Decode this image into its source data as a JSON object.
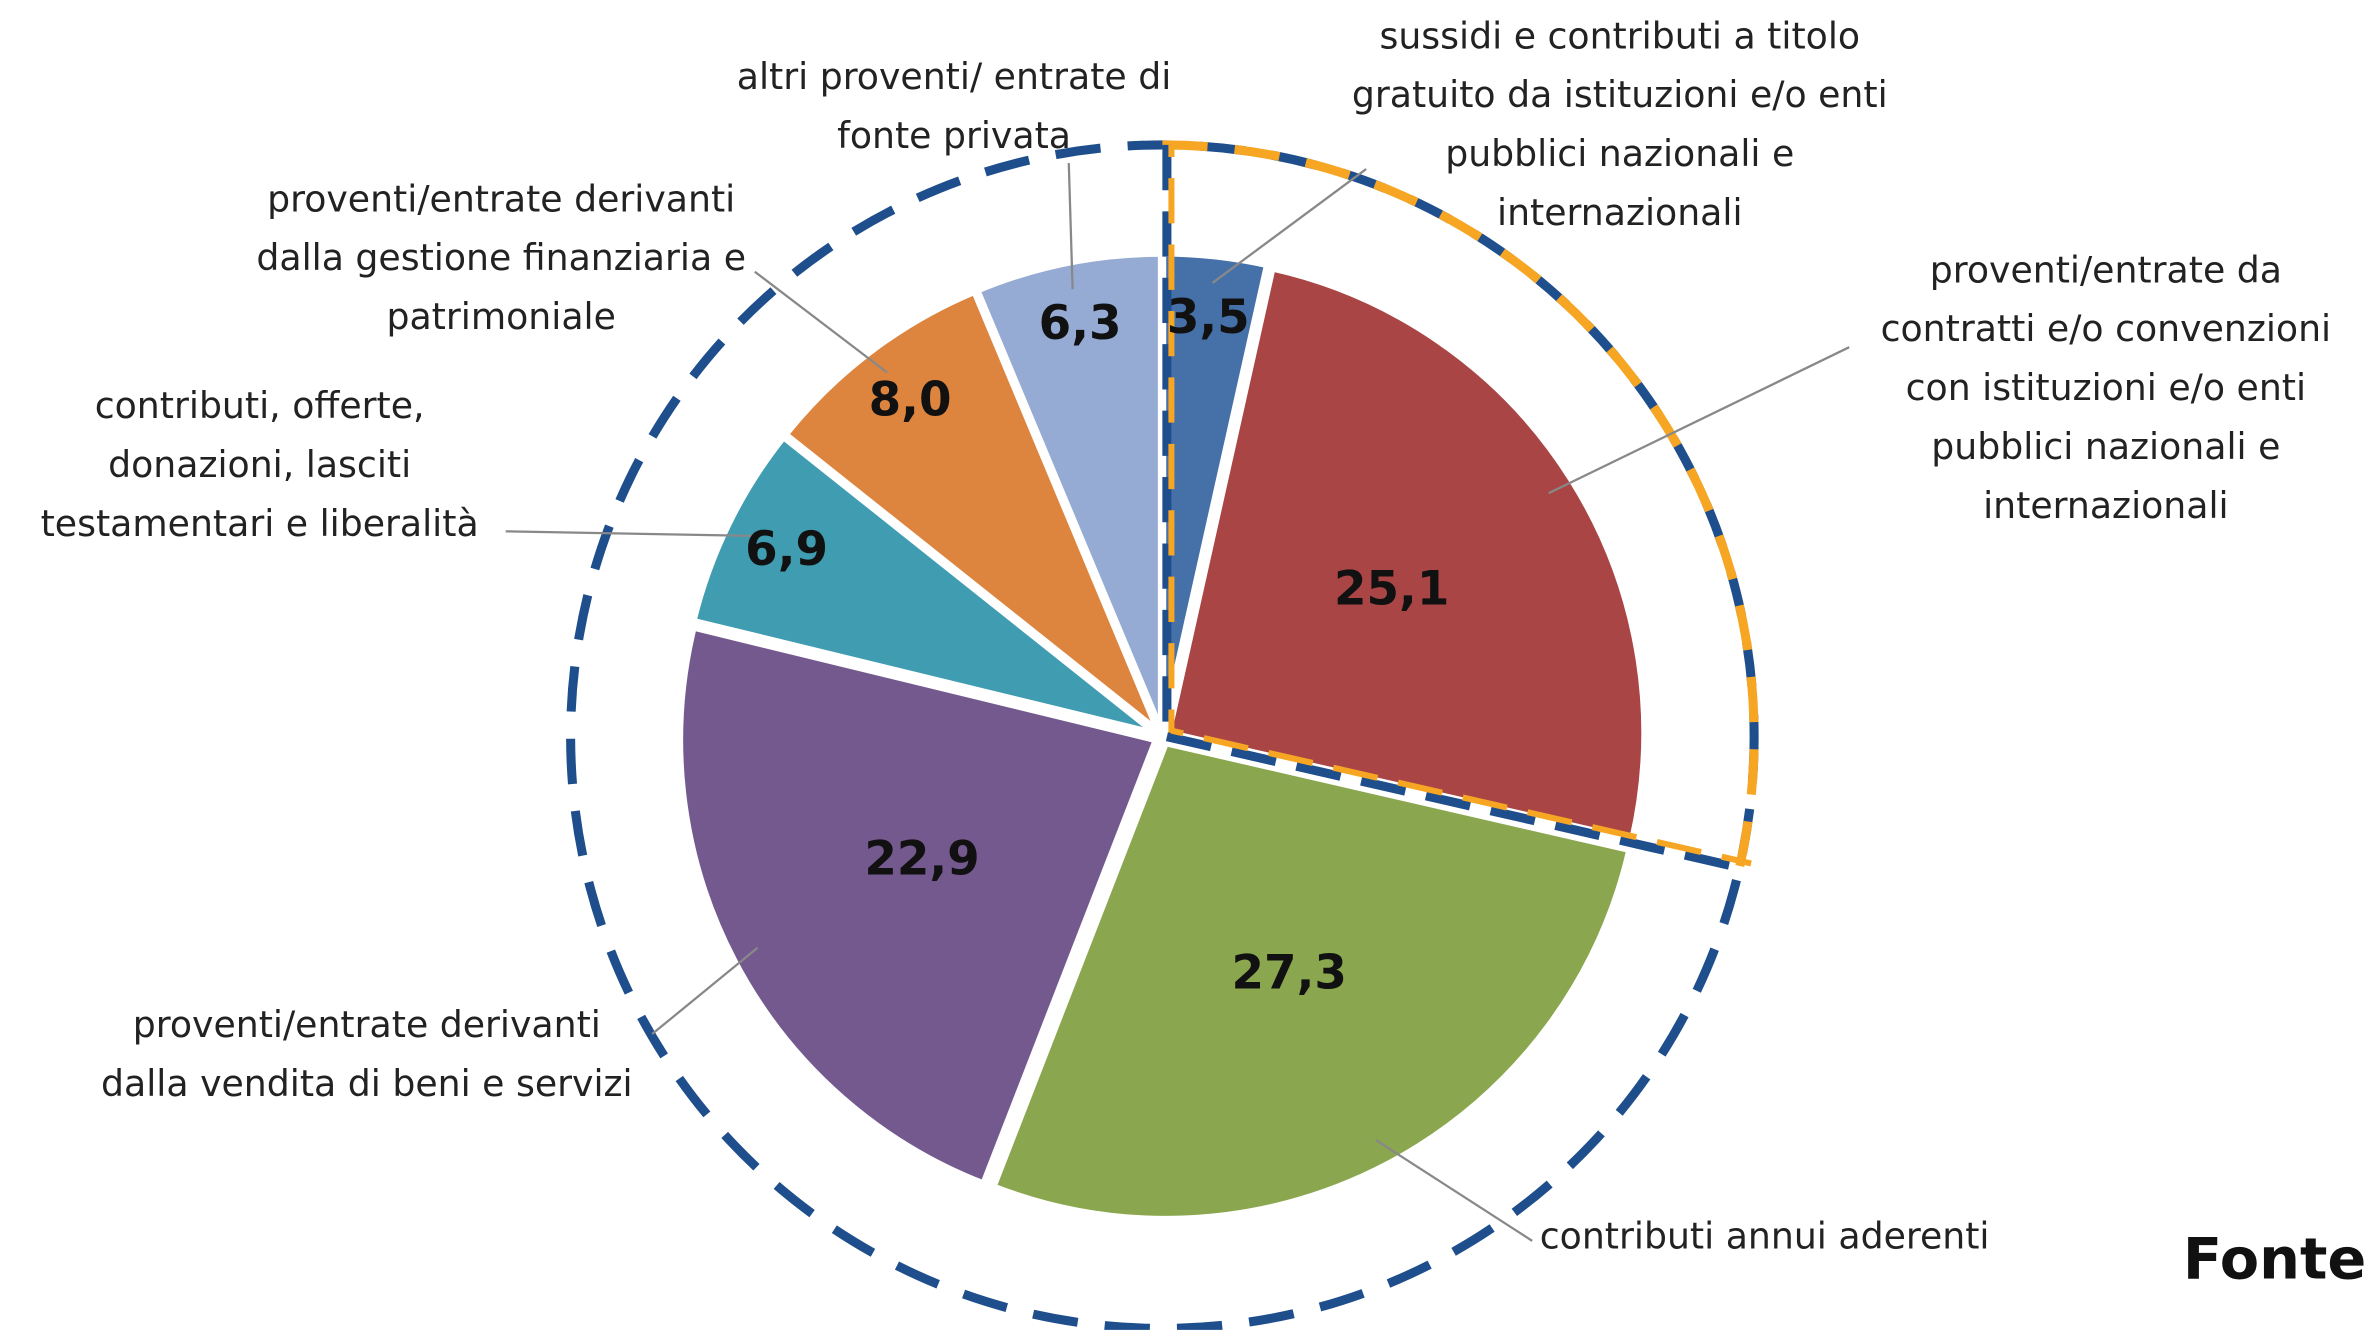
{
  "chart_data": {
    "type": "pie",
    "categories": [
      "sussidi e contributi a titolo gratuito da istituzioni e/o enti pubblici nazionali e internazionali",
      "proventi/entrate da contratti e/o convenzioni con istituzioni e/o enti pubblici nazionali e internazionali",
      "contributi annui aderenti",
      "proventi/entrate derivanti dalla vendita di beni e servizi",
      "contributi, offerte, donazioni, lasciti testamentari e liberalità",
      "proventi/entrate derivanti dalla gestione finanziaria e patrimoniale",
      "altri proventi/ entrate di fonte privata"
    ],
    "values": [
      3.5,
      25.1,
      27.3,
      22.9,
      6.9,
      8.0,
      6.3
    ],
    "value_labels": [
      "3,5",
      "25,1",
      "27,3",
      "22,9",
      "6,9",
      "8,0",
      "6,3"
    ],
    "colors": [
      "#4571a8",
      "#a94545",
      "#8aa74f",
      "#74598f",
      "#3f9cb1",
      "#dd853f",
      "#95abd3"
    ],
    "source": "Fonte:"
  }
}
